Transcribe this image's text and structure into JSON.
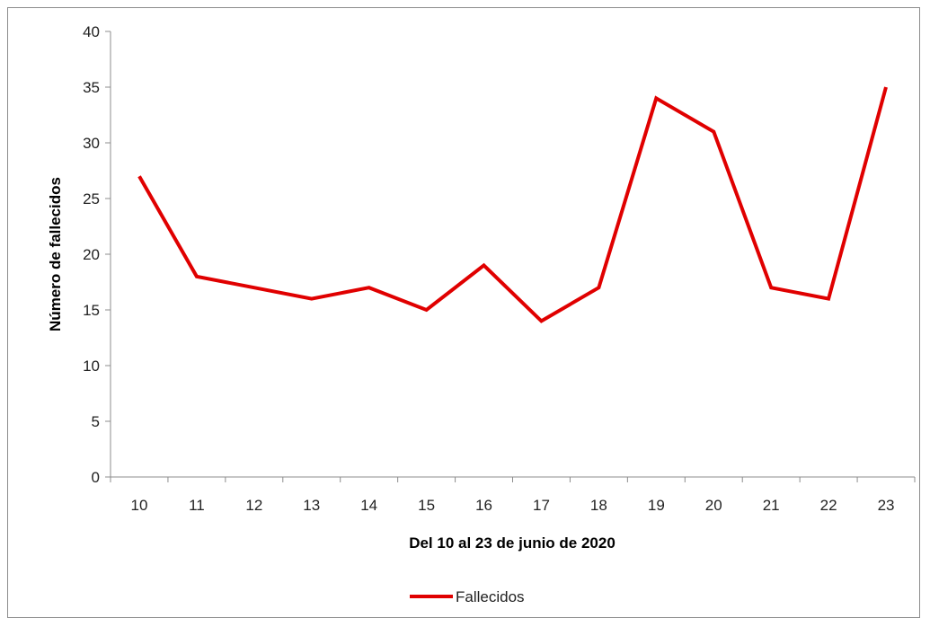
{
  "chart_data": {
    "type": "line",
    "x": [
      10,
      11,
      12,
      13,
      14,
      15,
      16,
      17,
      18,
      19,
      20,
      21,
      22,
      23
    ],
    "categories": [
      "10",
      "11",
      "12",
      "13",
      "14",
      "15",
      "16",
      "17",
      "18",
      "19",
      "20",
      "21",
      "22",
      "23"
    ],
    "series": [
      {
        "name": "Fallecidos",
        "color": "#e00000",
        "values": [
          27,
          18,
          17,
          16,
          17,
          15,
          19,
          14,
          17,
          34,
          31,
          17,
          16,
          35
        ]
      }
    ],
    "xlabel": "Del 10 al 23 de junio de 2020",
    "ylabel": "Número de fallecidos",
    "ylim": [
      0,
      40
    ],
    "yticks": [
      0,
      5,
      10,
      15,
      20,
      25,
      30,
      35,
      40
    ],
    "grid": false,
    "legend_position": "bottom"
  }
}
